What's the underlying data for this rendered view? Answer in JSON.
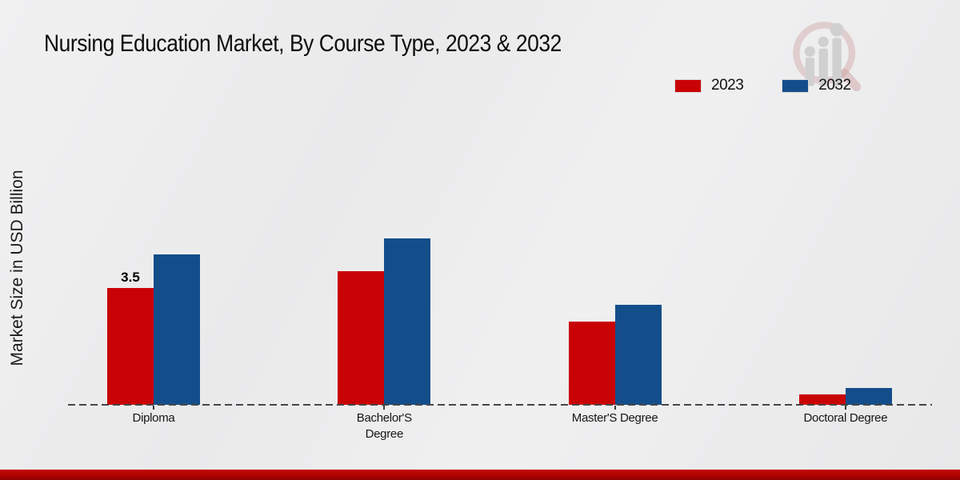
{
  "title": "Nursing Education Market, By Course Type, 2023 & 2032",
  "ylabel": "Market Size in USD Billion",
  "legend": [
    {
      "label": "2023",
      "color": "#c90305"
    },
    {
      "label": "2032",
      "color": "#134e8b"
    }
  ],
  "colors": {
    "series_2023": "#c90305",
    "series_2032": "#134e8b",
    "baseline": "#464646",
    "bottom_band": "#a80303",
    "background": "#ececec"
  },
  "watermark_icon": "magnifier-growth-chart-logo",
  "chart_data": {
    "type": "bar",
    "title": "Nursing Education Market, By Course Type, 2023 & 2032",
    "ylabel": "Market Size in USD Billion",
    "categories": [
      "Diploma",
      "Bachelor'S Degree",
      "Master'S Degree",
      "Doctoral Degree"
    ],
    "series": [
      {
        "name": "2023",
        "color": "#c90305",
        "values": [
          3.5,
          4.0,
          2.5,
          0.3
        ]
      },
      {
        "name": "2032",
        "color": "#134e8b",
        "values": [
          4.5,
          5.0,
          3.0,
          0.5
        ]
      }
    ],
    "bar_labels": [
      {
        "series_index": 0,
        "category_index": 0,
        "text": "3.5"
      }
    ],
    "ylim": [
      0,
      6
    ],
    "grid": false,
    "legend_position": "top-right",
    "x_axis_style": "dashed-line-no-ticks-labels-below"
  }
}
